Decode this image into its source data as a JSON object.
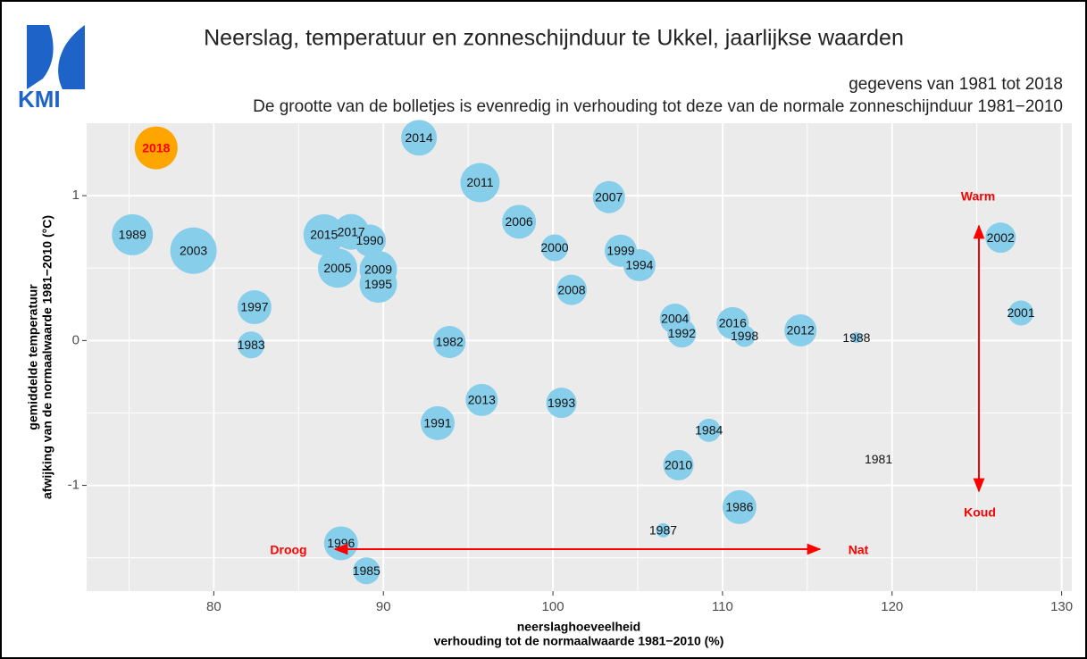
{
  "chart_data": {
    "type": "scatter",
    "logo": "KMI",
    "title": "Neerslag, temperatuur en zonneschijnduur te Ukkel, jaarlijkse waarden",
    "subtitle": "gegevens van 1981 tot 2018",
    "note": "De grootte van de bolletjes is evenredig in verhouding tot deze van de normale zonneschijnduur 1981−2010",
    "xlabel": [
      "neerslaghoeveelheid",
      "verhouding tot de normaalwaarde 1981−2010 (%)"
    ],
    "ylabel": [
      "gemiddelde temperatuur",
      "afwijking van de normaalwaarde 1981−2010 (°C)"
    ],
    "xlim": [
      72.5,
      130.6
    ],
    "ylim": [
      -1.73,
      1.5
    ],
    "xticks": [
      80,
      90,
      100,
      110,
      120,
      130
    ],
    "yticks": [
      -1,
      0,
      1
    ],
    "grid": true,
    "color": "#87ceeb",
    "annotations": [
      "Warm",
      "Koud",
      "Droog",
      "Nat"
    ],
    "annotation_color": "#ff0000",
    "points": [
      {
        "label": "2018",
        "x": 76.6,
        "y": 1.33,
        "size": 128,
        "color": "#ffa500",
        "label_color": "#ff0000"
      },
      {
        "label": "2014",
        "x": 92.1,
        "y": 1.4,
        "size": 120
      },
      {
        "label": "2011",
        "x": 95.7,
        "y": 1.09,
        "size": 124
      },
      {
        "label": "2007",
        "x": 103.3,
        "y": 0.99,
        "size": 116
      },
      {
        "label": "2006",
        "x": 98.0,
        "y": 0.82,
        "size": 118
      },
      {
        "label": "2000",
        "x": 100.1,
        "y": 0.64,
        "size": 110
      },
      {
        "label": "1999",
        "x": 104.0,
        "y": 0.62,
        "size": 116
      },
      {
        "label": "1994",
        "x": 105.1,
        "y": 0.52,
        "size": 116
      },
      {
        "label": "2008",
        "x": 101.1,
        "y": 0.35,
        "size": 114
      },
      {
        "label": "1989",
        "x": 75.2,
        "y": 0.73,
        "size": 126
      },
      {
        "label": "2003",
        "x": 78.8,
        "y": 0.62,
        "size": 132
      },
      {
        "label": "2015",
        "x": 86.5,
        "y": 0.73,
        "size": 126
      },
      {
        "label": "2017",
        "x": 88.1,
        "y": 0.75,
        "size": 120
      },
      {
        "label": "1990",
        "x": 89.2,
        "y": 0.69,
        "size": 116
      },
      {
        "label": "2005",
        "x": 87.3,
        "y": 0.5,
        "size": 124
      },
      {
        "label": "2009",
        "x": 89.7,
        "y": 0.49,
        "size": 122
      },
      {
        "label": "1995",
        "x": 89.7,
        "y": 0.39,
        "size": 122
      },
      {
        "label": "1997",
        "x": 82.4,
        "y": 0.23,
        "size": 118
      },
      {
        "label": "1983",
        "x": 82.2,
        "y": -0.03,
        "size": 110
      },
      {
        "label": "1982",
        "x": 93.9,
        "y": -0.01,
        "size": 116
      },
      {
        "label": "2013",
        "x": 95.8,
        "y": -0.41,
        "size": 116
      },
      {
        "label": "1993",
        "x": 100.5,
        "y": -0.43,
        "size": 114
      },
      {
        "label": "1991",
        "x": 93.2,
        "y": -0.57,
        "size": 118
      },
      {
        "label": "2004",
        "x": 107.2,
        "y": 0.15,
        "size": 114
      },
      {
        "label": "1992",
        "x": 107.6,
        "y": 0.05,
        "size": 112
      },
      {
        "label": "2016",
        "x": 110.6,
        "y": 0.12,
        "size": 116
      },
      {
        "label": "1998",
        "x": 111.3,
        "y": 0.03,
        "size": 104
      },
      {
        "label": "2012",
        "x": 114.6,
        "y": 0.07,
        "size": 116
      },
      {
        "label": "1988",
        "x": 117.9,
        "y": 0.02,
        "size": 92
      },
      {
        "label": "2002",
        "x": 126.4,
        "y": 0.71,
        "size": 114
      },
      {
        "label": "2001",
        "x": 127.6,
        "y": 0.19,
        "size": 108
      },
      {
        "label": "1984",
        "x": 109.2,
        "y": -0.62,
        "size": 106
      },
      {
        "label": "2010",
        "x": 107.4,
        "y": -0.86,
        "size": 114
      },
      {
        "label": "1981",
        "x": 119.2,
        "y": -0.82,
        "size": 80
      },
      {
        "label": "1986",
        "x": 111.0,
        "y": -1.15,
        "size": 118
      },
      {
        "label": "1987",
        "x": 106.5,
        "y": -1.31,
        "size": 96
      },
      {
        "label": "1996",
        "x": 87.5,
        "y": -1.4,
        "size": 118
      },
      {
        "label": "1985",
        "x": 89.0,
        "y": -1.59,
        "size": 110
      }
    ]
  }
}
